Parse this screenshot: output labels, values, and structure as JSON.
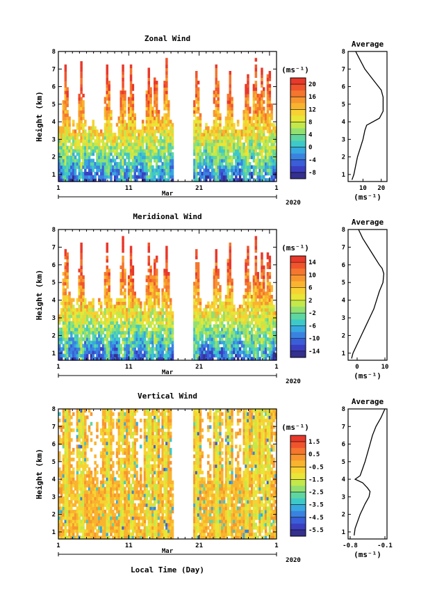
{
  "chart_data": [
    {
      "type": "heatmap",
      "title": "Zonal Wind",
      "ylabel": "Height (km)",
      "ylim": [
        0.6,
        8
      ],
      "yticks": [
        "1",
        "2",
        "3",
        "4",
        "5",
        "6",
        "7",
        "8"
      ],
      "xticks": [
        "1",
        "11",
        "21",
        "1"
      ],
      "month_label": "Mar",
      "year_label": "2020",
      "colorbar": {
        "unit": "(ms⁻¹)",
        "ticks": [
          "20",
          "16",
          "12",
          "8",
          "4",
          "0",
          "-4",
          "-8"
        ],
        "range": [
          -10,
          22
        ]
      },
      "profile": {
        "title": "Average",
        "xticks": [
          "10",
          "20"
        ],
        "xrange": [
          3,
          22
        ],
        "xlabel": "(ms⁻¹)",
        "heights": [
          0.7,
          1.0,
          1.5,
          2.0,
          2.5,
          3.0,
          3.5,
          3.8,
          4.2,
          4.6,
          5.0,
          5.4,
          5.8,
          6.2,
          6.6,
          7.0,
          7.4,
          7.8,
          8.0
        ],
        "values": [
          4,
          5,
          6,
          7,
          8.5,
          10,
          11,
          12,
          19,
          21,
          21,
          21,
          20,
          17,
          14,
          11,
          9,
          7,
          6
        ]
      }
    },
    {
      "type": "heatmap",
      "title": "Meridional Wind",
      "ylabel": "Height (km)",
      "ylim": [
        0.6,
        8
      ],
      "yticks": [
        "1",
        "2",
        "3",
        "4",
        "5",
        "6",
        "7",
        "8"
      ],
      "xticks": [
        "1",
        "11",
        "21",
        "1"
      ],
      "month_label": "Mar",
      "year_label": "2020",
      "colorbar": {
        "unit": "(ms⁻¹)",
        "ticks": [
          "14",
          "10",
          "6",
          "2",
          "-2",
          "-6",
          "-10",
          "-14"
        ],
        "range": [
          -16,
          16
        ]
      },
      "profile": {
        "title": "Average",
        "xticks": [
          "0",
          "10"
        ],
        "xrange": [
          -2.5,
          10
        ],
        "xlabel": "(ms⁻¹)",
        "heights": [
          0.7,
          1.0,
          1.5,
          2.0,
          2.5,
          3.0,
          3.5,
          4.0,
          4.5,
          5.0,
          5.5,
          5.8,
          6.0,
          6.5,
          7.0,
          7.5,
          8.0
        ],
        "values": [
          -2,
          -1.5,
          0,
          1.5,
          3,
          4.5,
          6,
          7,
          8,
          9.3,
          9.6,
          9,
          8,
          6,
          4,
          2,
          0.5
        ]
      }
    },
    {
      "type": "heatmap",
      "title": "Vertical Wind",
      "xlabel": "Local Time (Day)",
      "ylabel": "Height (km)",
      "ylim": [
        0.6,
        8
      ],
      "yticks": [
        "1",
        "2",
        "3",
        "4",
        "5",
        "6",
        "7",
        "8"
      ],
      "xticks": [
        "1",
        "11",
        "21",
        "1"
      ],
      "month_label": "Mar",
      "year_label": "2020",
      "colorbar": {
        "unit": "(ms⁻¹)",
        "ticks": [
          "1.5",
          "0.5",
          "-0.5",
          "-1.5",
          "-2.5",
          "-3.5",
          "-4.5",
          "-5.5"
        ],
        "range": [
          -6.5,
          2.5
        ]
      },
      "profile": {
        "title": "Average",
        "xticks": [
          "-0.8",
          "-0.1"
        ],
        "xrange": [
          -0.8,
          -0.1
        ],
        "xlabel": "(ms⁻¹)",
        "heights": [
          0.8,
          1.2,
          1.6,
          2.0,
          2.3,
          2.6,
          3.0,
          3.3,
          3.5,
          3.8,
          4.0,
          4.2,
          4.6,
          5.0,
          5.5,
          6.0,
          6.5,
          7.0,
          7.5,
          8.0
        ],
        "values": [
          -0.72,
          -0.7,
          -0.65,
          -0.6,
          -0.55,
          -0.5,
          -0.42,
          -0.4,
          -0.45,
          -0.55,
          -0.7,
          -0.6,
          -0.55,
          -0.5,
          -0.45,
          -0.4,
          -0.35,
          -0.28,
          -0.18,
          -0.1
        ]
      }
    }
  ]
}
